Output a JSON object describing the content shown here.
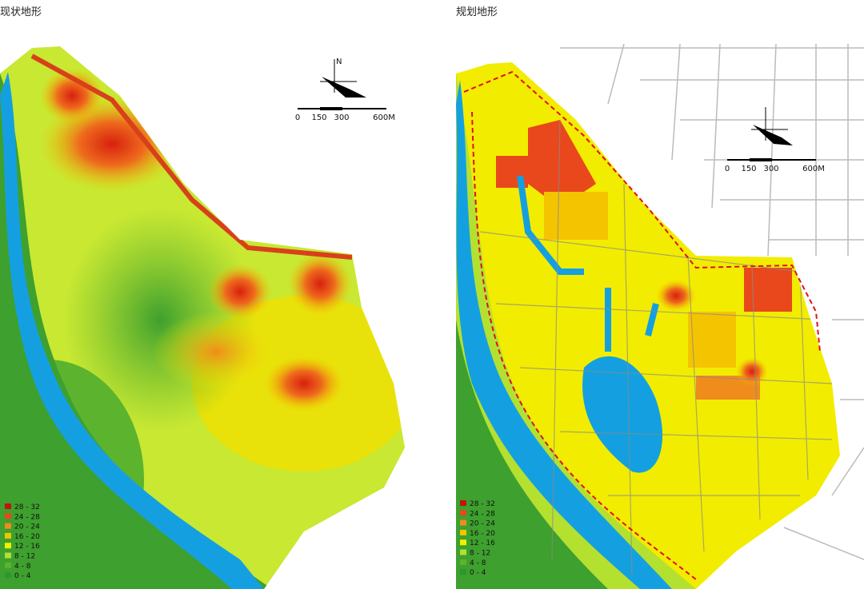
{
  "panels": [
    {
      "title": "现状地形",
      "north": "N",
      "scale": [
        "0",
        "150",
        "300",
        "600M"
      ],
      "legend": [
        {
          "label": "28 - 32",
          "color": "#c81010"
        },
        {
          "label": "24 - 28",
          "color": "#e8481c"
        },
        {
          "label": "20 - 24",
          "color": "#f08c1c"
        },
        {
          "label": "16 - 20",
          "color": "#f5c400"
        },
        {
          "label": "12 - 16",
          "color": "#f0f000"
        },
        {
          "label": "8 - 12",
          "color": "#b4e030"
        },
        {
          "label": "4 - 8",
          "color": "#5cb42e"
        },
        {
          "label": "0 - 4",
          "color": "#2e962e"
        }
      ]
    },
    {
      "title": "规划地形",
      "scale": [
        "0",
        "150",
        "300",
        "600M"
      ],
      "legend": [
        {
          "label": "28 - 32",
          "color": "#c81010"
        },
        {
          "label": "24 - 28",
          "color": "#e8481c"
        },
        {
          "label": "20 - 24",
          "color": "#f08c1c"
        },
        {
          "label": "16 - 20",
          "color": "#f5c400"
        },
        {
          "label": "12 - 16",
          "color": "#f0f000"
        },
        {
          "label": "8 - 12",
          "color": "#b4e030"
        },
        {
          "label": "4 - 8",
          "color": "#5cb42e"
        },
        {
          "label": "0 - 4",
          "color": "#2e962e"
        }
      ]
    }
  ]
}
